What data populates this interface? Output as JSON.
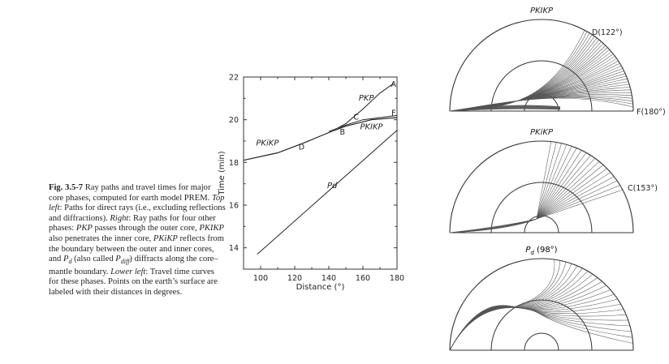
{
  "caption": {
    "label": "Fig. 3.5-7",
    "segments": [
      {
        "t": " Ray paths and travel times for major core phases, computed for earth model PREM. ",
        "s": "n"
      },
      {
        "t": "Top left",
        "s": "i"
      },
      {
        "t": ": Paths for direct rays (i.e., excluding reflections and diffractions). ",
        "s": "n"
      },
      {
        "t": "Right",
        "s": "i"
      },
      {
        "t": ": Ray paths for four other phases: ",
        "s": "n"
      },
      {
        "t": "PKP",
        "s": "i"
      },
      {
        "t": " passes through the outer core, ",
        "s": "n"
      },
      {
        "t": "PKIKP",
        "s": "i"
      },
      {
        "t": " also penetrates the inner core, ",
        "s": "n"
      },
      {
        "t": "PKiKP",
        "s": "i"
      },
      {
        "t": " reflects from the boundary between the outer and inner cores, and ",
        "s": "n"
      },
      {
        "t": "P",
        "s": "i"
      },
      {
        "t": "d",
        "s": "sub"
      },
      {
        "t": " (also called ",
        "s": "n"
      },
      {
        "t": "P",
        "s": "i"
      },
      {
        "t": "diff",
        "s": "sub"
      },
      {
        "t": ") diffracts along the core–mantle boundary. ",
        "s": "n"
      },
      {
        "t": "Lower left",
        "s": "i"
      },
      {
        "t": ": Travel time curves for these phases. Points on the earth’s surface are labeled with their distances in degrees.",
        "s": "n"
      }
    ]
  },
  "chart_data": {
    "type": "line",
    "xlabel": "Distance (°)",
    "ylabel": "Time (min)",
    "xlim": [
      90,
      180
    ],
    "ylim": [
      13,
      22
    ],
    "xticks": [
      100,
      120,
      140,
      160,
      180
    ],
    "yticks": [
      14,
      16,
      18,
      20,
      22
    ],
    "grid": false,
    "series": [
      {
        "name": "PKiKP",
        "points": [
          [
            90,
            18.1
          ],
          [
            110,
            18.45
          ],
          [
            125,
            18.9
          ],
          [
            140,
            19.4
          ],
          [
            150,
            19.7
          ],
          [
            165,
            20.0
          ],
          [
            180,
            20.1
          ]
        ]
      },
      {
        "name": "PKP",
        "points": [
          [
            145,
            19.6
          ],
          [
            150,
            19.82
          ],
          [
            160,
            20.5
          ],
          [
            170,
            21.25
          ],
          [
            178,
            21.7
          ]
        ]
      },
      {
        "name": "PKIKP",
        "points": [
          [
            140,
            19.45
          ],
          [
            145,
            19.6
          ],
          [
            150,
            19.75
          ],
          [
            160,
            20.0
          ],
          [
            175,
            20.15
          ],
          [
            180,
            20.2
          ]
        ]
      },
      {
        "name": "Pd",
        "points": [
          [
            98,
            13.7
          ],
          [
            180,
            19.5
          ]
        ]
      }
    ],
    "point_labels": [
      {
        "text": "A",
        "x": 178,
        "y": 21.55
      },
      {
        "text": "B",
        "x": 148,
        "y": 19.3
      },
      {
        "text": "C",
        "x": 156,
        "y": 20.0
      },
      {
        "text": "D",
        "x": 124,
        "y": 18.6
      },
      {
        "text": "F",
        "x": 178,
        "y": 20.2
      }
    ],
    "series_labels": [
      {
        "text": "PKP",
        "x": 162,
        "y": 20.9
      },
      {
        "text": "PKiKP",
        "x": 104,
        "y": 18.8
      },
      {
        "text": "PKIKP",
        "x": 165,
        "y": 19.55
      },
      {
        "text": "Pd",
        "x": 142,
        "y": 16.8
      }
    ]
  },
  "ray_diagrams": [
    {
      "title": "PKIKP",
      "labels": [
        "D(122°)",
        "F(180°)"
      ]
    },
    {
      "title": "PKiKP",
      "labels": [
        "C(153°)"
      ]
    },
    {
      "title_main": "P",
      "title_sub": "d",
      "title_suffix": " (98°)",
      "labels": []
    }
  ]
}
